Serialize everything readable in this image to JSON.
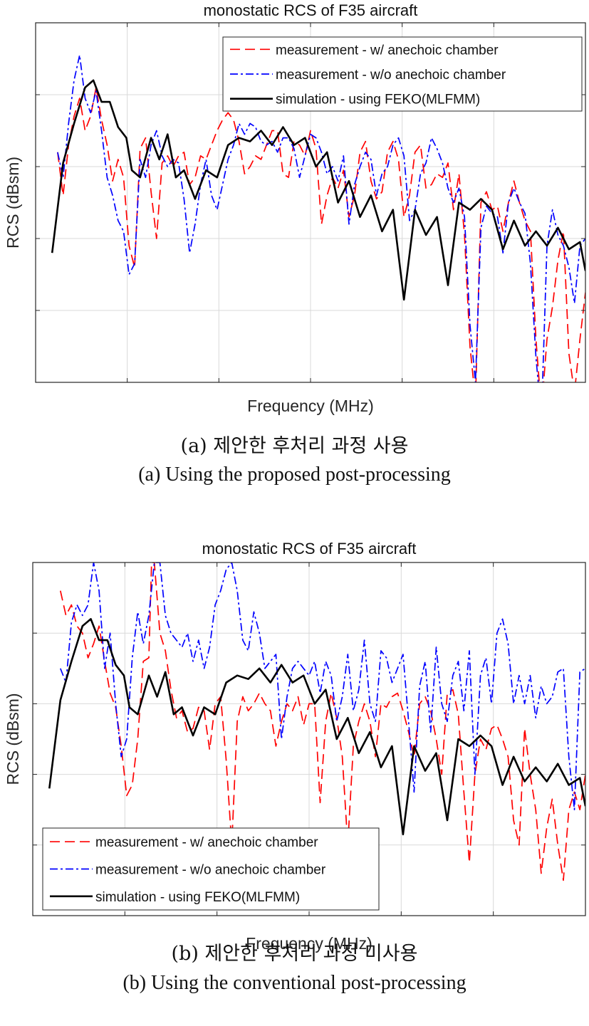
{
  "colors": {
    "red": "#ff0000",
    "blue": "#0000ff",
    "black": "#000000",
    "grid": "#d9d9d9",
    "axis": "#262626"
  },
  "chart_data": [
    {
      "type": "line",
      "title": "monostatic RCS of F35 aircraft",
      "xlabel": "Frequency (MHz)",
      "ylabel": "RCS (dBsm)",
      "xlim": [
        0,
        100
      ],
      "ylim": [
        0,
        100
      ],
      "tick_labels_shown": false,
      "grid": true,
      "legend_position": "top-right",
      "caption_ko": "(a) 제안한 후처리 과정 사용",
      "caption_en": "(a) Using the proposed post-processing",
      "series": [
        {
          "name": "measurement - w/ anechoic chamber",
          "style": "dashed",
          "color": "red",
          "x": [
            4,
            5,
            6,
            7,
            8,
            9,
            10,
            11,
            12,
            13,
            14,
            15,
            16,
            17,
            18,
            19,
            20,
            21,
            22,
            23,
            24,
            25,
            26,
            27,
            28,
            29,
            30,
            31,
            32,
            33,
            34,
            35,
            36,
            37,
            38,
            39,
            40,
            41,
            42,
            43,
            44,
            45,
            46,
            47,
            48,
            49,
            50,
            51,
            52,
            53,
            54,
            55,
            56,
            57,
            58,
            59,
            60,
            61,
            62,
            63,
            64,
            65,
            66,
            67,
            68,
            69,
            70,
            71,
            72,
            73,
            74,
            75,
            76,
            77,
            78,
            79,
            80,
            81,
            82,
            83,
            84,
            85,
            86,
            87,
            88,
            89,
            90,
            91,
            92,
            93,
            94,
            95,
            96,
            97,
            98,
            99,
            100
          ],
          "y": [
            64,
            52,
            66,
            74,
            79,
            70,
            74,
            82,
            73,
            66,
            56,
            62,
            57,
            38,
            32,
            65,
            68,
            53,
            40,
            61,
            63,
            60,
            63,
            64,
            55,
            57,
            63,
            62,
            66,
            70,
            73,
            75,
            73,
            67,
            58,
            60,
            63,
            62,
            66,
            70,
            70,
            58,
            57,
            67,
            66,
            63,
            70,
            65,
            44,
            52,
            57,
            54,
            59,
            46,
            52,
            64,
            67,
            56,
            51,
            53,
            64,
            67,
            62,
            46,
            52,
            64,
            66,
            54,
            55,
            58,
            57,
            61,
            48,
            58,
            41,
            10,
            -5,
            50,
            53,
            48,
            49,
            42,
            50,
            56,
            50,
            45,
            42,
            12,
            -8,
            12,
            21,
            34,
            42,
            8,
            -3,
            12,
            25
          ]
        },
        {
          "name": "measurement - w/o anechoic chamber",
          "style": "dashdot",
          "color": "blue",
          "x": [
            4,
            5,
            6,
            7,
            8,
            9,
            10,
            11,
            12,
            13,
            14,
            15,
            16,
            17,
            18,
            19,
            20,
            21,
            22,
            23,
            24,
            25,
            26,
            27,
            28,
            29,
            30,
            31,
            32,
            33,
            34,
            35,
            36,
            37,
            38,
            39,
            40,
            41,
            42,
            43,
            44,
            45,
            46,
            47,
            48,
            49,
            50,
            51,
            52,
            53,
            54,
            55,
            56,
            57,
            58,
            59,
            60,
            61,
            62,
            63,
            64,
            65,
            66,
            67,
            68,
            69,
            70,
            71,
            72,
            73,
            74,
            75,
            76,
            77,
            78,
            79,
            80,
            81,
            82,
            83,
            84,
            85,
            86,
            87,
            88,
            89,
            90,
            91,
            92,
            93,
            94,
            95,
            96,
            97,
            98,
            99,
            100
          ],
          "y": [
            64,
            57,
            72,
            84,
            91,
            79,
            75,
            81,
            70,
            57,
            52,
            45,
            42,
            30,
            33,
            62,
            57,
            66,
            70,
            63,
            60,
            62,
            61,
            51,
            36,
            44,
            55,
            62,
            52,
            48,
            55,
            62,
            66,
            72,
            69,
            72,
            71,
            67,
            66,
            67,
            64,
            68,
            68,
            65,
            57,
            63,
            69,
            68,
            64,
            58,
            60,
            56,
            63,
            44,
            55,
            60,
            64,
            62,
            52,
            58,
            60,
            66,
            68,
            63,
            45,
            48,
            58,
            61,
            68,
            65,
            61,
            54,
            50,
            54,
            46,
            16,
            0,
            43,
            49,
            47,
            46,
            36,
            50,
            54,
            50,
            47,
            33,
            7,
            -10,
            38,
            48,
            41,
            38,
            32,
            22,
            38,
            40
          ]
        },
        {
          "name": "simulation - using FEKO(MLFMM)",
          "style": "solid",
          "color": "black",
          "x": [
            3,
            5,
            7,
            9,
            10.5,
            12,
            13.5,
            15,
            16.5,
            17.5,
            19,
            21,
            22.5,
            24,
            25.5,
            27,
            29,
            31,
            33,
            35,
            37,
            39,
            41,
            43,
            45,
            47,
            49,
            51,
            53,
            55,
            57,
            59,
            61,
            63,
            65,
            67,
            69,
            71,
            73,
            75,
            77,
            79,
            81,
            83,
            85,
            87,
            89,
            91,
            93,
            95,
            97,
            99,
            100
          ],
          "y": [
            36,
            61,
            72,
            82,
            84,
            78,
            78,
            71,
            68,
            59,
            57,
            68,
            62,
            69,
            57,
            59,
            51,
            59,
            57,
            66,
            68,
            67,
            70,
            66,
            71,
            66,
            68,
            60,
            64,
            50,
            56,
            46,
            52,
            42,
            48,
            23,
            48,
            41,
            46,
            27,
            50,
            48,
            51,
            48,
            37,
            45,
            38,
            42,
            38,
            43,
            37,
            39,
            31
          ]
        }
      ]
    },
    {
      "type": "line",
      "title": "monostatic RCS of F35 aircraft",
      "xlabel": "Frequency (MHz)",
      "ylabel": "RCS (dBsm)",
      "xlim": [
        0,
        100
      ],
      "ylim": [
        0,
        100
      ],
      "tick_labels_shown": false,
      "grid": true,
      "legend_position": "bottom-left",
      "caption_ko": "(b) 제안한 후처리 과정 미사용",
      "caption_en": "(b) Using the conventional post-processing",
      "series": [
        {
          "name": "measurement - w/ anechoic chamber",
          "style": "dashed",
          "color": "red",
          "x": [
            5,
            6,
            7,
            8,
            9,
            10,
            11,
            12,
            13,
            14,
            15,
            16,
            17,
            18,
            19,
            20,
            21,
            21.5,
            22,
            23,
            24,
            25,
            26,
            27,
            28,
            29,
            30,
            31,
            32,
            33,
            34,
            35,
            36,
            37,
            38,
            39,
            40,
            41,
            42,
            43,
            44,
            45,
            46,
            47,
            48,
            49,
            50,
            51,
            52,
            53,
            54,
            55,
            56,
            57,
            58,
            59,
            60,
            61,
            62,
            63,
            64,
            65,
            66,
            67,
            68,
            69,
            70,
            71,
            72,
            73,
            74,
            75,
            76,
            77,
            78,
            79,
            80,
            81,
            82,
            83,
            84,
            85,
            86,
            87,
            88,
            89,
            90,
            91,
            92,
            93,
            94,
            95,
            96,
            97,
            98,
            99,
            100
          ],
          "y": [
            92,
            85,
            88,
            82,
            80,
            73,
            77,
            82,
            72,
            63,
            59,
            48,
            34,
            37,
            50,
            72,
            73,
            100,
            100,
            80,
            75,
            64,
            56,
            58,
            52,
            53,
            59,
            58,
            47,
            60,
            62,
            44,
            20,
            55,
            62,
            58,
            60,
            63,
            60,
            58,
            48,
            55,
            60,
            58,
            62,
            54,
            60,
            60,
            32,
            55,
            63,
            56,
            45,
            20,
            48,
            55,
            60,
            55,
            45,
            60,
            59,
            62,
            63,
            58,
            52,
            45,
            60,
            62,
            58,
            50,
            40,
            63,
            64,
            57,
            35,
            15,
            40,
            50,
            47,
            53,
            54,
            50,
            45,
            27,
            20,
            53,
            40,
            30,
            12,
            25,
            33,
            20,
            10,
            30,
            35,
            30,
            40
          ]
        },
        {
          "name": "measurement - w/o anechoic chamber",
          "style": "dashdot",
          "color": "blue",
          "x": [
            5,
            6,
            7,
            8,
            9,
            10,
            11,
            12,
            13,
            14,
            15,
            16,
            17,
            18,
            19,
            20,
            21,
            22,
            23,
            24,
            25,
            26,
            27,
            28,
            29,
            30,
            31,
            32,
            33,
            34,
            35,
            36,
            37,
            38,
            39,
            40,
            41,
            42,
            43,
            44,
            45,
            46,
            47,
            48,
            49,
            50,
            51,
            52,
            53,
            54,
            55,
            56,
            57,
            58,
            59,
            60,
            61,
            62,
            63,
            64,
            65,
            66,
            67,
            68,
            69,
            70,
            71,
            72,
            73,
            74,
            75,
            76,
            77,
            78,
            79,
            80,
            81,
            82,
            83,
            84,
            85,
            86,
            87,
            88,
            89,
            90,
            91,
            92,
            93,
            94,
            95,
            96,
            97,
            98,
            99,
            100
          ],
          "y": [
            70,
            66,
            83,
            88,
            85,
            88,
            100,
            92,
            70,
            80,
            60,
            45,
            50,
            73,
            86,
            77,
            85,
            100,
            100,
            85,
            80,
            78,
            76,
            80,
            72,
            78,
            70,
            76,
            88,
            92,
            98,
            100,
            92,
            78,
            75,
            86,
            80,
            70,
            72,
            74,
            50,
            62,
            70,
            72,
            70,
            68,
            72,
            63,
            72,
            68,
            55,
            62,
            74,
            58,
            64,
            78,
            60,
            55,
            75,
            73,
            66,
            70,
            74,
            55,
            35,
            65,
            72,
            52,
            76,
            60,
            55,
            68,
            72,
            58,
            75,
            40,
            68,
            73,
            60,
            80,
            84,
            77,
            60,
            68,
            60,
            68,
            56,
            65,
            60,
            62,
            69,
            70,
            45,
            30,
            69,
            70
          ]
        },
        {
          "name": "simulation - using FEKO(MLFMM)",
          "style": "solid",
          "color": "black",
          "x": [
            3,
            5,
            7,
            9,
            10.5,
            12,
            13.5,
            15,
            16.5,
            17.5,
            19,
            21,
            22.5,
            24,
            25.5,
            27,
            29,
            31,
            33,
            35,
            37,
            39,
            41,
            43,
            45,
            47,
            49,
            51,
            53,
            55,
            57,
            59,
            61,
            63,
            65,
            67,
            69,
            71,
            73,
            75,
            77,
            79,
            81,
            83,
            85,
            87,
            89,
            91,
            93,
            95,
            97,
            99,
            100
          ],
          "y": [
            36,
            61,
            72,
            82,
            84,
            78,
            78,
            71,
            68,
            59,
            57,
            68,
            62,
            69,
            57,
            59,
            51,
            59,
            57,
            66,
            68,
            67,
            70,
            66,
            71,
            66,
            68,
            60,
            64,
            50,
            56,
            46,
            52,
            42,
            48,
            23,
            48,
            41,
            46,
            27,
            50,
            48,
            51,
            48,
            37,
            45,
            38,
            42,
            38,
            43,
            37,
            39,
            31
          ]
        }
      ]
    }
  ]
}
